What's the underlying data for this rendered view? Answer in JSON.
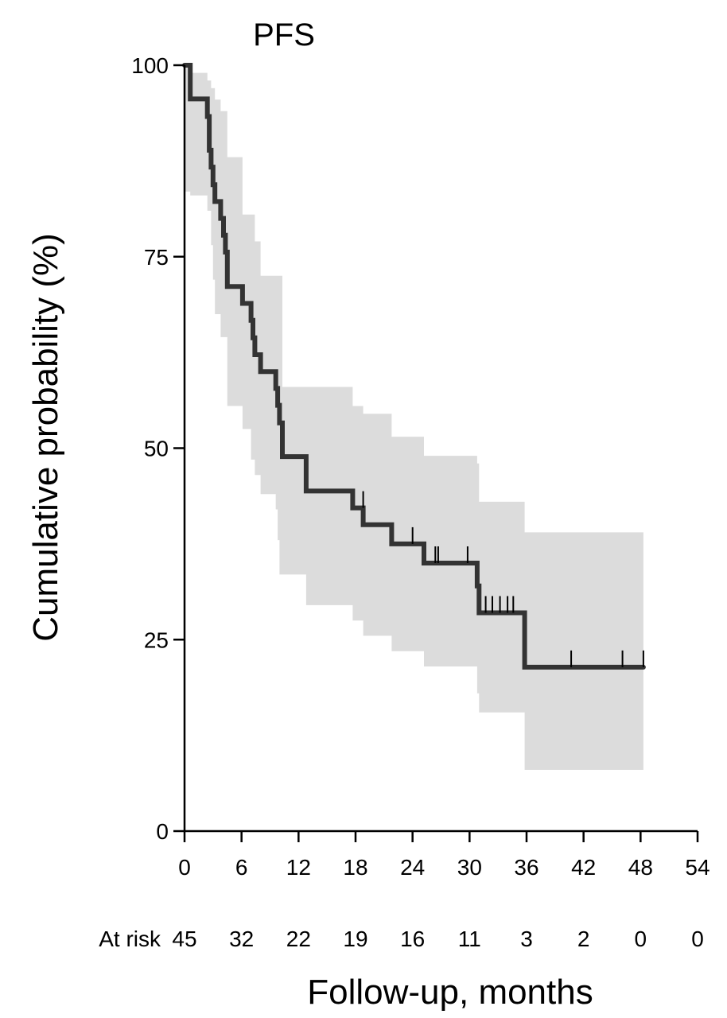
{
  "chart_data": {
    "type": "line",
    "subtype": "kaplan-meier",
    "title": "PFS",
    "ylabel": "Cumulative probability (%)",
    "xlabel": "Follow-up, months",
    "xlim": [
      0,
      54
    ],
    "ylim": [
      0,
      100
    ],
    "xticks": [
      0,
      6,
      12,
      18,
      24,
      30,
      36,
      42,
      48,
      54
    ],
    "yticks": [
      0,
      25,
      50,
      75,
      100
    ],
    "grid": false,
    "series": [
      {
        "name": "PFS",
        "color": "#333333",
        "steps": [
          [
            0,
            100
          ],
          [
            0.6,
            95.6
          ],
          [
            2.4,
            93.3
          ],
          [
            2.6,
            88.9
          ],
          [
            2.8,
            86.7
          ],
          [
            3.0,
            84.4
          ],
          [
            3.2,
            82.2
          ],
          [
            3.8,
            80.0
          ],
          [
            4.1,
            77.8
          ],
          [
            4.3,
            75.6
          ],
          [
            4.5,
            71.1
          ],
          [
            6.1,
            68.9
          ],
          [
            7.0,
            66.7
          ],
          [
            7.2,
            64.4
          ],
          [
            7.4,
            62.2
          ],
          [
            8.0,
            60.0
          ],
          [
            9.6,
            57.8
          ],
          [
            9.8,
            55.6
          ],
          [
            10.0,
            53.3
          ],
          [
            10.3,
            48.9
          ],
          [
            12.8,
            44.4
          ],
          [
            17.7,
            42.2
          ],
          [
            18.8,
            40.0
          ],
          [
            21.8,
            37.5
          ],
          [
            25.2,
            35.0
          ],
          [
            30.8,
            32.0
          ],
          [
            31.0,
            28.5
          ],
          [
            35.8,
            21.4
          ],
          [
            48.3,
            21.4
          ]
        ],
        "ci_upper": [
          [
            0,
            100
          ],
          [
            0.6,
            99.0
          ],
          [
            2.4,
            98.0
          ],
          [
            2.8,
            97.0
          ],
          [
            3.2,
            95.5
          ],
          [
            3.8,
            94.0
          ],
          [
            4.5,
            88.0
          ],
          [
            6.1,
            80.5
          ],
          [
            7.4,
            77.0
          ],
          [
            8.0,
            72.5
          ],
          [
            10.3,
            58.0
          ],
          [
            17.7,
            55.5
          ],
          [
            18.8,
            54.5
          ],
          [
            21.8,
            51.5
          ],
          [
            25.2,
            49.0
          ],
          [
            30.8,
            48.0
          ],
          [
            31.0,
            43.0
          ],
          [
            35.8,
            39.0
          ],
          [
            48.3,
            39.0
          ]
        ],
        "ci_lower": [
          [
            0,
            83.5
          ],
          [
            0.6,
            83.0
          ],
          [
            2.4,
            81.0
          ],
          [
            2.8,
            76.5
          ],
          [
            3.0,
            72.0
          ],
          [
            3.2,
            67.5
          ],
          [
            3.8,
            64.5
          ],
          [
            4.5,
            55.5
          ],
          [
            6.1,
            52.5
          ],
          [
            7.0,
            48.5
          ],
          [
            7.4,
            46.5
          ],
          [
            8.0,
            44.0
          ],
          [
            9.6,
            42.0
          ],
          [
            9.8,
            38.0
          ],
          [
            10.0,
            33.5
          ],
          [
            12.8,
            29.5
          ],
          [
            17.7,
            27.5
          ],
          [
            18.8,
            25.5
          ],
          [
            21.8,
            23.5
          ],
          [
            25.2,
            21.5
          ],
          [
            30.8,
            18.0
          ],
          [
            31.0,
            15.5
          ],
          [
            35.8,
            8.0
          ],
          [
            48.3,
            8.0
          ]
        ],
        "censor_marks": [
          [
            18.8,
            42.2
          ],
          [
            24.0,
            37.5
          ],
          [
            26.4,
            35.0
          ],
          [
            26.7,
            35.0
          ],
          [
            29.8,
            35.0
          ],
          [
            31.7,
            28.5
          ],
          [
            32.4,
            28.5
          ],
          [
            33.2,
            28.5
          ],
          [
            34.0,
            28.5
          ],
          [
            34.6,
            28.5
          ],
          [
            40.7,
            21.4
          ],
          [
            46.1,
            21.4
          ],
          [
            48.3,
            21.4
          ]
        ]
      }
    ],
    "risk_table": {
      "label": "At risk",
      "times": [
        0,
        6,
        12,
        18,
        24,
        30,
        36,
        42,
        48,
        54
      ],
      "counts": [
        "45",
        "32",
        "22",
        "19",
        "16",
        "11",
        "3",
        "2",
        "0",
        "0"
      ]
    },
    "colors": {
      "line": "#333333",
      "ci_band": "#dcdcdc",
      "axis": "#000000"
    }
  }
}
